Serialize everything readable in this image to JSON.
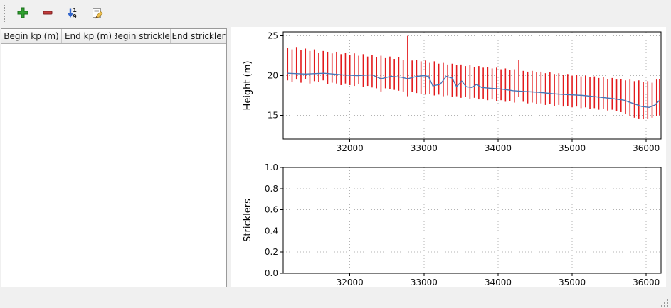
{
  "window": {
    "background": "#f0f0f0",
    "chart_background": "#ffffff"
  },
  "toolbar": {
    "buttons": [
      {
        "id": "add-row",
        "icon": "plus-icon"
      },
      {
        "id": "remove-row",
        "icon": "minus-icon"
      },
      {
        "id": "sort-rows",
        "icon": "sort-numeric-icon"
      },
      {
        "id": "edit-row",
        "icon": "edit-pencil-icon"
      }
    ]
  },
  "table": {
    "columns": [
      "Begin kp (m)",
      "End kp (m)",
      "Begin strickler",
      "End strickler"
    ],
    "rows": []
  },
  "chart_data": [
    {
      "type": "line",
      "title": "",
      "xlabel": "",
      "ylabel": "Height (m)",
      "xlim": [
        31100,
        36200
      ],
      "ylim": [
        12,
        25.5
      ],
      "xticks": [
        32000,
        33000,
        34000,
        35000,
        36000
      ],
      "xtick_labels": [
        "32000",
        "33000",
        "34000",
        "35000",
        "36000"
      ],
      "yticks": [
        15,
        20,
        25
      ],
      "ytick_labels": [
        "15",
        "20",
        "25"
      ],
      "grid": "dotted",
      "legend": "none",
      "bar_color": "#e31a1c",
      "line_color": "#4878b8",
      "bars_description": "vertical min-max extent bars of cross sections [kp, min_height, max_height]",
      "bars": [
        [
          31160,
          19.4,
          23.5
        ],
        [
          31220,
          19.2,
          23.3
        ],
        [
          31280,
          19.5,
          23.6
        ],
        [
          31340,
          19.1,
          23.2
        ],
        [
          31400,
          19.6,
          23.4
        ],
        [
          31460,
          19.0,
          23.1
        ],
        [
          31520,
          19.3,
          23.3
        ],
        [
          31580,
          19.2,
          22.9
        ],
        [
          31640,
          19.4,
          23.1
        ],
        [
          31700,
          18.9,
          23.0
        ],
        [
          31760,
          19.1,
          22.8
        ],
        [
          31820,
          19.0,
          23.0
        ],
        [
          31880,
          18.8,
          22.7
        ],
        [
          31940,
          19.0,
          22.9
        ],
        [
          32000,
          18.8,
          22.6
        ],
        [
          32060,
          18.7,
          22.8
        ],
        [
          32120,
          18.9,
          22.5
        ],
        [
          32180,
          18.6,
          22.7
        ],
        [
          32240,
          18.7,
          22.4
        ],
        [
          32300,
          18.5,
          22.6
        ],
        [
          32360,
          18.4,
          22.3
        ],
        [
          32420,
          18.0,
          22.5
        ],
        [
          32480,
          18.4,
          22.2
        ],
        [
          32540,
          18.3,
          22.4
        ],
        [
          32600,
          18.2,
          22.1
        ],
        [
          32660,
          18.1,
          22.3
        ],
        [
          32720,
          18.0,
          22.0
        ],
        [
          32780,
          17.4,
          25.0
        ],
        [
          32840,
          17.9,
          21.9
        ],
        [
          32900,
          17.8,
          22.0
        ],
        [
          32960,
          17.7,
          21.8
        ],
        [
          33020,
          17.6,
          21.9
        ],
        [
          33080,
          17.7,
          21.6
        ],
        [
          33140,
          17.5,
          21.8
        ],
        [
          33200,
          17.6,
          21.5
        ],
        [
          33260,
          17.4,
          21.6
        ],
        [
          33320,
          17.5,
          21.4
        ],
        [
          33380,
          17.3,
          21.5
        ],
        [
          33440,
          17.4,
          21.3
        ],
        [
          33500,
          17.2,
          21.4
        ],
        [
          33560,
          17.3,
          21.2
        ],
        [
          33620,
          17.1,
          21.3
        ],
        [
          33680,
          17.2,
          21.1
        ],
        [
          33740,
          17.0,
          21.2
        ],
        [
          33800,
          17.1,
          21.0
        ],
        [
          33860,
          16.9,
          21.1
        ],
        [
          33920,
          17.0,
          20.9
        ],
        [
          33980,
          16.8,
          21.0
        ],
        [
          34040,
          16.9,
          20.8
        ],
        [
          34100,
          16.7,
          20.9
        ],
        [
          34160,
          16.8,
          20.7
        ],
        [
          34220,
          16.6,
          20.8
        ],
        [
          34280,
          17.3,
          22.0
        ],
        [
          34340,
          16.7,
          20.6
        ],
        [
          34400,
          16.5,
          20.5
        ],
        [
          34460,
          16.6,
          20.6
        ],
        [
          34520,
          16.4,
          20.4
        ],
        [
          34580,
          16.5,
          20.5
        ],
        [
          34640,
          16.3,
          20.3
        ],
        [
          34700,
          16.4,
          20.4
        ],
        [
          34760,
          16.2,
          20.2
        ],
        [
          34820,
          16.3,
          20.3
        ],
        [
          34880,
          16.1,
          20.1
        ],
        [
          34940,
          16.2,
          20.2
        ],
        [
          35000,
          16.0,
          20.0
        ],
        [
          35060,
          16.1,
          20.1
        ],
        [
          35120,
          15.9,
          19.9
        ],
        [
          35180,
          16.0,
          20.0
        ],
        [
          35240,
          15.8,
          19.8
        ],
        [
          35300,
          15.9,
          19.9
        ],
        [
          35360,
          15.7,
          19.7
        ],
        [
          35420,
          15.8,
          19.8
        ],
        [
          35480,
          15.6,
          19.6
        ],
        [
          35540,
          15.7,
          19.7
        ],
        [
          35600,
          15.5,
          19.5
        ],
        [
          35660,
          15.4,
          19.6
        ],
        [
          35720,
          15.2,
          19.4
        ],
        [
          35780,
          14.9,
          19.5
        ],
        [
          35840,
          14.7,
          19.3
        ],
        [
          35900,
          14.6,
          19.4
        ],
        [
          35960,
          14.5,
          19.2
        ],
        [
          36020,
          14.6,
          19.3
        ],
        [
          36080,
          14.7,
          19.1
        ],
        [
          36140,
          14.9,
          19.5
        ],
        [
          36180,
          15.0,
          19.6
        ]
      ],
      "line_description": "mean bed height along kp",
      "line": [
        [
          31160,
          20.3
        ],
        [
          31400,
          20.2
        ],
        [
          31650,
          20.3
        ],
        [
          31900,
          20.1
        ],
        [
          32100,
          20.0
        ],
        [
          32300,
          20.1
        ],
        [
          32420,
          19.6
        ],
        [
          32550,
          19.9
        ],
        [
          32700,
          19.8
        ],
        [
          32780,
          19.6
        ],
        [
          32900,
          19.9
        ],
        [
          33000,
          20.0
        ],
        [
          33060,
          19.9
        ],
        [
          33120,
          18.7
        ],
        [
          33220,
          18.9
        ],
        [
          33300,
          19.9
        ],
        [
          33380,
          19.7
        ],
        [
          33440,
          18.6
        ],
        [
          33510,
          19.3
        ],
        [
          33570,
          18.6
        ],
        [
          33650,
          18.5
        ],
        [
          33710,
          18.9
        ],
        [
          33780,
          18.5
        ],
        [
          33900,
          18.4
        ],
        [
          34050,
          18.3
        ],
        [
          34200,
          18.1
        ],
        [
          34350,
          18.0
        ],
        [
          34550,
          17.9
        ],
        [
          34750,
          17.7
        ],
        [
          34950,
          17.6
        ],
        [
          35150,
          17.5
        ],
        [
          35350,
          17.3
        ],
        [
          35550,
          17.1
        ],
        [
          35700,
          16.9
        ],
        [
          35820,
          16.5
        ],
        [
          35940,
          16.1
        ],
        [
          36040,
          16.0
        ],
        [
          36120,
          16.3
        ],
        [
          36180,
          16.9
        ]
      ]
    },
    {
      "type": "line",
      "title": "",
      "xlabel": "",
      "ylabel": "Stricklers",
      "xlim": [
        31100,
        36200
      ],
      "ylim": [
        0,
        1
      ],
      "xticks": [
        32000,
        33000,
        34000,
        35000,
        36000
      ],
      "xtick_labels": [
        "32000",
        "33000",
        "34000",
        "35000",
        "36000"
      ],
      "yticks": [
        0,
        0.2,
        0.4,
        0.6,
        0.8,
        1.0
      ],
      "ytick_labels": [
        "0.0",
        "0.2",
        "0.4",
        "0.6",
        "0.8",
        "1.0"
      ],
      "grid": "dotted",
      "legend": "none",
      "bars": [],
      "line": []
    }
  ]
}
